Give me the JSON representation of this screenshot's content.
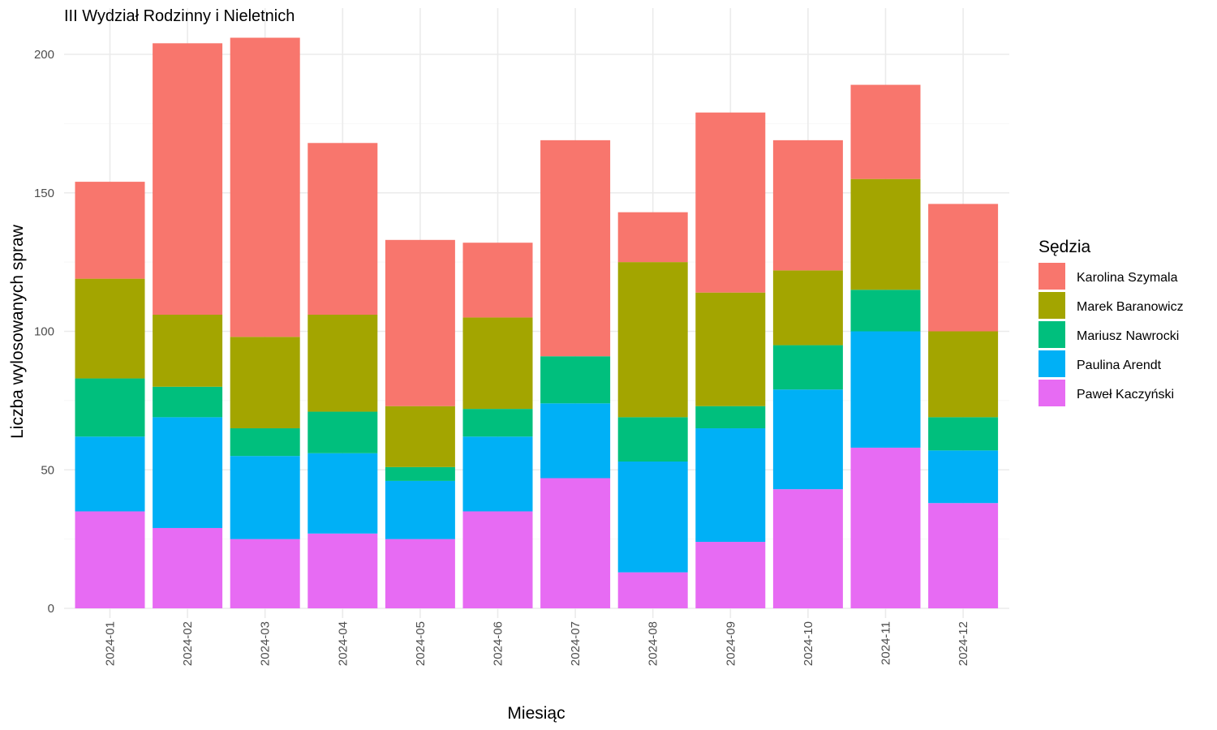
{
  "chart_data": {
    "type": "bar",
    "stacked": true,
    "title": "III Wydział Rodzinny i Nieletnich",
    "xlabel": "Miesiąc",
    "ylabel": "Liczba wylosowanych spraw",
    "ylim": [
      0,
      210
    ],
    "yticks": [
      0,
      50,
      100,
      150,
      200
    ],
    "grid": true,
    "legend": {
      "title": "Sędzia",
      "position": "right"
    },
    "categories": [
      "2024-01",
      "2024-02",
      "2024-03",
      "2024-04",
      "2024-05",
      "2024-06",
      "2024-07",
      "2024-08",
      "2024-09",
      "2024-10",
      "2024-11",
      "2024-12"
    ],
    "series": [
      {
        "name": "Paweł Kaczyński",
        "color": "#E76BF3",
        "values": [
          35,
          29,
          25,
          27,
          25,
          35,
          47,
          13,
          24,
          43,
          58,
          38
        ]
      },
      {
        "name": "Paulina Arendt",
        "color": "#00B0F6",
        "values": [
          27,
          40,
          30,
          29,
          21,
          27,
          27,
          40,
          41,
          36,
          42,
          19
        ]
      },
      {
        "name": "Mariusz Nawrocki",
        "color": "#00BF7D",
        "values": [
          21,
          11,
          10,
          15,
          5,
          10,
          17,
          16,
          8,
          16,
          15,
          12
        ]
      },
      {
        "name": "Marek Baranowicz",
        "color": "#A3A500",
        "values": [
          36,
          26,
          33,
          35,
          22,
          33,
          0,
          56,
          41,
          27,
          40,
          31
        ]
      },
      {
        "name": "Karolina Szymala",
        "color": "#F8766D",
        "values": [
          35,
          98,
          108,
          62,
          60,
          27,
          78,
          18,
          65,
          47,
          34,
          46
        ]
      }
    ]
  }
}
